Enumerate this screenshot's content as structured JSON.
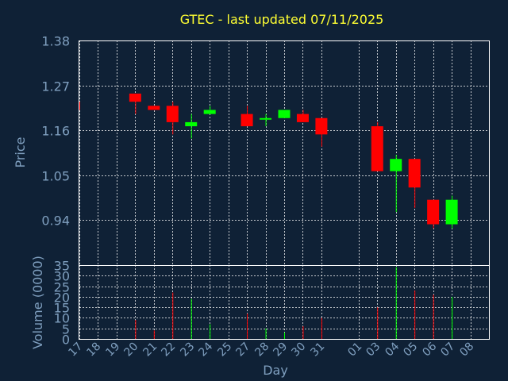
{
  "chart_data": {
    "type": "candlestick",
    "title": "GTEC - last updated 07/11/2025",
    "xlabel": "Day",
    "ylabel": "Price",
    "volume_label": "Volume (0000)",
    "price_ticks": [
      1.38,
      1.27,
      1.16,
      1.05,
      0.94
    ],
    "price_range": [
      0.83,
      1.38
    ],
    "volume_ticks": [
      35,
      30,
      25,
      20,
      15,
      10,
      5,
      0
    ],
    "volume_range": [
      0,
      35
    ],
    "x_labels": [
      "17",
      "18",
      "19",
      "20",
      "21",
      "22",
      "23",
      "24",
      "25",
      "27",
      "28",
      "29",
      "30",
      "31",
      "01",
      "03",
      "04",
      "05",
      "06",
      "07",
      "08"
    ],
    "colors": {
      "up": "#00ff00",
      "down": "#ff0000",
      "title": "#ffff33",
      "axis": "#7f9fbf",
      "background": "#0f2136"
    },
    "candles": [
      {
        "day": "17",
        "open": 1.23,
        "high": 1.23,
        "low": 1.21,
        "close": 1.21,
        "volume": 0
      },
      {
        "day": "20",
        "open": 1.25,
        "high": 1.25,
        "low": 1.2,
        "close": 1.23,
        "volume": 9
      },
      {
        "day": "21",
        "open": 1.22,
        "high": 1.22,
        "low": 1.21,
        "close": 1.21,
        "volume": 4
      },
      {
        "day": "22",
        "open": 1.22,
        "high": 1.23,
        "low": 1.15,
        "close": 1.18,
        "volume": 22
      },
      {
        "day": "23",
        "open": 1.17,
        "high": 1.2,
        "low": 1.14,
        "close": 1.18,
        "volume": 19
      },
      {
        "day": "24",
        "open": 1.2,
        "high": 1.22,
        "low": 1.2,
        "close": 1.21,
        "volume": 7
      },
      {
        "day": "27",
        "open": 1.2,
        "high": 1.22,
        "low": 1.17,
        "close": 1.17,
        "volume": 12
      },
      {
        "day": "28",
        "open": 1.19,
        "high": 1.2,
        "low": 1.17,
        "close": 1.19,
        "volume": 5
      },
      {
        "day": "29",
        "open": 1.19,
        "high": 1.21,
        "low": 1.19,
        "close": 1.21,
        "volume": 3
      },
      {
        "day": "30",
        "open": 1.2,
        "high": 1.21,
        "low": 1.18,
        "close": 1.18,
        "volume": 6
      },
      {
        "day": "31",
        "open": 1.19,
        "high": 1.19,
        "low": 1.12,
        "close": 1.15,
        "volume": 10
      },
      {
        "day": "03",
        "open": 1.17,
        "high": 1.18,
        "low": 1.06,
        "close": 1.06,
        "volume": 15
      },
      {
        "day": "04",
        "open": 1.06,
        "high": 1.1,
        "low": 0.96,
        "close": 1.09,
        "volume": 34
      },
      {
        "day": "05",
        "open": 1.09,
        "high": 1.09,
        "low": 0.97,
        "close": 1.02,
        "volume": 23
      },
      {
        "day": "06",
        "open": 0.99,
        "high": 0.99,
        "low": 0.92,
        "close": 0.93,
        "volume": 21
      },
      {
        "day": "07",
        "open": 0.93,
        "high": 1.0,
        "low": 0.92,
        "close": 0.99,
        "volume": 20
      }
    ]
  }
}
